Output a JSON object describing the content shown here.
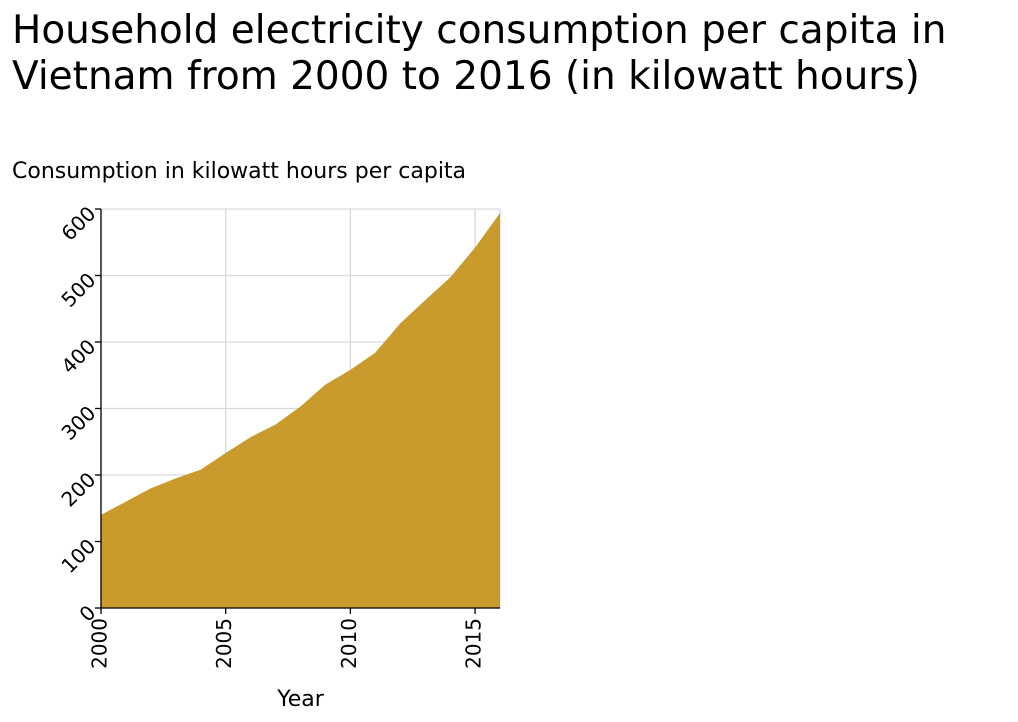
{
  "chart_data": {
    "type": "area",
    "title": "Household electricity consumption per capita in Vietnam from 2000 to 2016 (in kilowatt hours)",
    "xlabel": "Year",
    "ylabel": "Consumption in kilowatt hours per capita",
    "x": [
      2000,
      2001,
      2002,
      2003,
      2004,
      2005,
      2006,
      2007,
      2008,
      2009,
      2010,
      2011,
      2012,
      2013,
      2014,
      2015,
      2016
    ],
    "series": [
      {
        "values": [
          140,
          160,
          180,
          195,
          208,
          233,
          257,
          276,
          303,
          336,
          358,
          384,
          428,
          463,
          497,
          542,
          594
        ]
      }
    ],
    "xlim": [
      2000,
      2016
    ],
    "ylim": [
      0,
      600
    ],
    "xticks": [
      "2000",
      "2005",
      "2010",
      "2015"
    ],
    "yticks": [
      "0",
      "100",
      "200",
      "300",
      "400",
      "500",
      "600"
    ],
    "grid": true,
    "fill_color": "#c99b2d",
    "grid_color": "#d9d9d9"
  }
}
